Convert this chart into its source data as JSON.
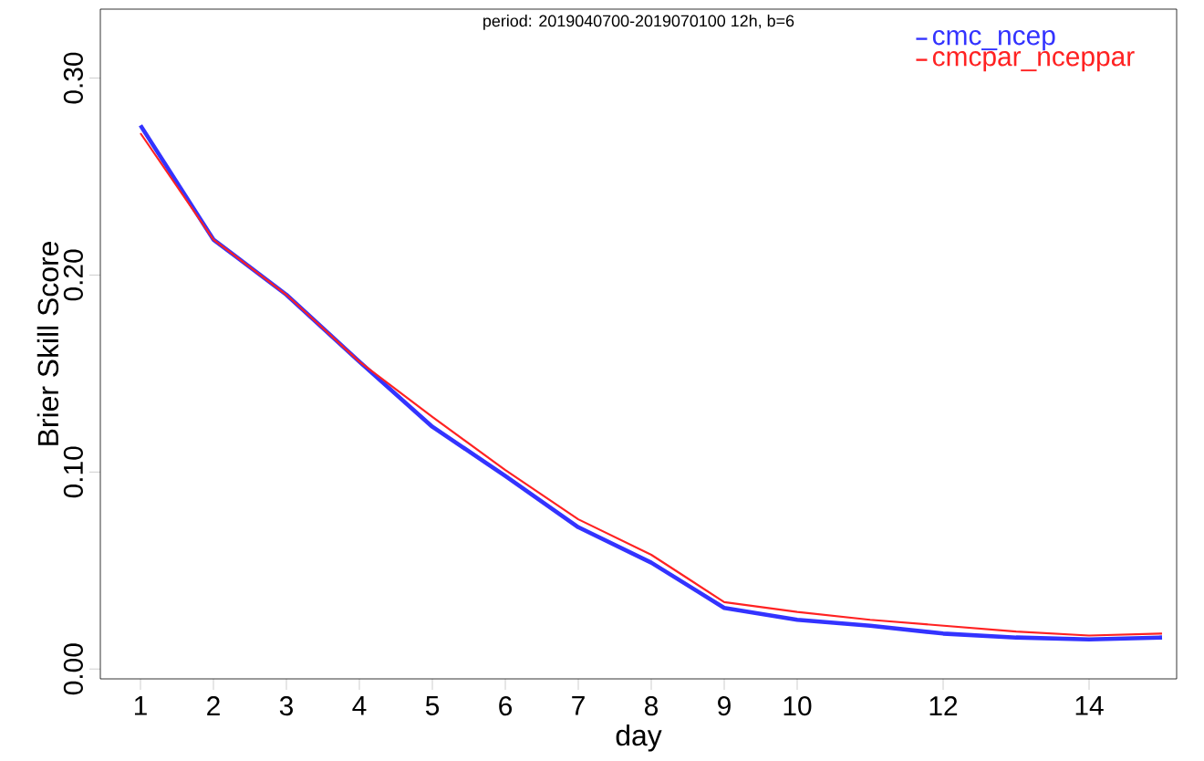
{
  "chart_data": {
    "type": "line",
    "title": "period: 2019040700-2019070100 12h, b=6",
    "xlabel": "day",
    "ylabel": "Brier Skill Score",
    "x": [
      1,
      2,
      3,
      4,
      5,
      6,
      7,
      8,
      9,
      10,
      11,
      12,
      13,
      14,
      15
    ],
    "series": [
      {
        "name": "cmc_ncep",
        "color": "#3333ff",
        "values": [
          0.276,
          0.218,
          0.19,
          0.156,
          0.123,
          0.098,
          0.072,
          0.054,
          0.031,
          0.025,
          0.022,
          0.018,
          0.016,
          0.015,
          0.016
        ]
      },
      {
        "name": "cmcpar_nceppar",
        "color": "#ff2222",
        "values": [
          0.272,
          0.218,
          0.19,
          0.156,
          0.128,
          0.101,
          0.076,
          0.058,
          0.034,
          0.029,
          0.025,
          0.022,
          0.019,
          0.017,
          0.018
        ]
      }
    ],
    "xlim": [
      0.45,
      15.2
    ],
    "ylim": [
      -0.005,
      0.335
    ],
    "xticks": [
      1,
      2,
      3,
      4,
      5,
      6,
      7,
      8,
      9,
      10,
      12,
      14
    ],
    "yticks": [
      {
        "value": 0,
        "label": "0.00"
      },
      {
        "value": 0.1,
        "label": "0.10"
      },
      {
        "value": 0.2,
        "label": "0.20"
      },
      {
        "value": 0.3,
        "label": "0.30"
      }
    ],
    "legend": "top right",
    "grid": false,
    "marker": "none",
    "line_style": "solid"
  }
}
